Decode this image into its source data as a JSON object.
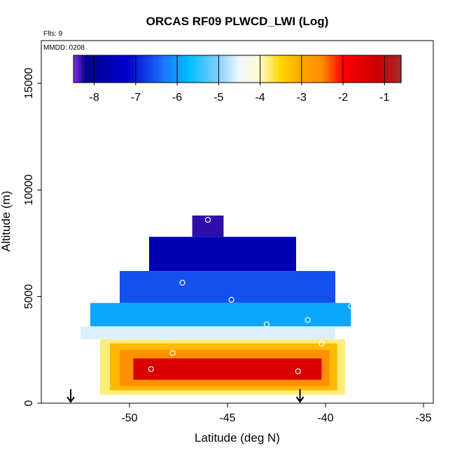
{
  "chart_data": {
    "type": "heatmap",
    "title": "ORCAS RF09 PLWCD_LWI (Log)",
    "xlabel": "Latitude (deg N)",
    "ylabel": "Altitude (m)",
    "xlim": [
      -54.5,
      -34.5
    ],
    "ylim": [
      0,
      17000
    ],
    "x_ticks": [
      -50,
      -45,
      -40,
      -35
    ],
    "y_ticks": [
      0,
      5000,
      10000,
      15000
    ],
    "annotations": {
      "flights": "Flts: 9",
      "date": "MMDD: 0208"
    },
    "colorbar": {
      "min": -8.5,
      "max": -0.6,
      "ticks": [
        -8,
        -7,
        -6,
        -5,
        -4,
        -3,
        -2,
        -1
      ],
      "stops": [
        {
          "v": -8.5,
          "c": "#8a2be2"
        },
        {
          "v": -8.2,
          "c": "#00008b"
        },
        {
          "v": -7.2,
          "c": "#0000cd"
        },
        {
          "v": -6.3,
          "c": "#1e78ff"
        },
        {
          "v": -5.7,
          "c": "#00bfff"
        },
        {
          "v": -5.0,
          "c": "#87cefa"
        },
        {
          "v": -4.5,
          "c": "#f0f8ff"
        },
        {
          "v": -4.0,
          "c": "#fffacd"
        },
        {
          "v": -3.5,
          "c": "#ffd700"
        },
        {
          "v": -3.0,
          "c": "#ffa500"
        },
        {
          "v": -2.5,
          "c": "#ff8c00"
        },
        {
          "v": -2.0,
          "c": "#ff0000"
        },
        {
          "v": -1.2,
          "c": "#cc0000"
        },
        {
          "v": -0.6,
          "c": "#a52a2a"
        }
      ]
    },
    "field_regions": [
      {
        "name": "upper-apex",
        "lat": [
          -46.8,
          -45.2
        ],
        "alt": [
          7800,
          8800
        ],
        "value": -8.3
      },
      {
        "name": "upper-dark",
        "lat": [
          -49.0,
          -41.5
        ],
        "alt": [
          6200,
          7800
        ],
        "value": -7.6
      },
      {
        "name": "mid-blue",
        "lat": [
          -50.5,
          -39.5
        ],
        "alt": [
          4700,
          6200
        ],
        "value": -6.6
      },
      {
        "name": "lower-blue",
        "lat": [
          -52.0,
          -38.7
        ],
        "alt": [
          3600,
          4700
        ],
        "value": -5.9
      },
      {
        "name": "pale-transition",
        "lat": [
          -52.5,
          -39.5
        ],
        "alt": [
          3000,
          3600
        ],
        "value": -4.6
      },
      {
        "name": "cloud-edge",
        "lat": [
          -51.5,
          -39.0
        ],
        "alt": [
          400,
          3000
        ],
        "value": -3.8
      },
      {
        "name": "cloud-yellow",
        "lat": [
          -51.0,
          -39.4
        ],
        "alt": [
          600,
          2800
        ],
        "value": -3.2
      },
      {
        "name": "cloud-orange",
        "lat": [
          -50.5,
          -39.8
        ],
        "alt": [
          800,
          2500
        ],
        "value": -2.6
      },
      {
        "name": "cloud-core",
        "lat": [
          -49.8,
          -40.2
        ],
        "alt": [
          1100,
          2100
        ],
        "value": -1.4
      }
    ],
    "sample_points": [
      {
        "lat": -46.0,
        "alt": 8600
      },
      {
        "lat": -47.3,
        "alt": 5650
      },
      {
        "lat": -44.8,
        "alt": 4850
      },
      {
        "lat": -43.0,
        "alt": 3700
      },
      {
        "lat": -40.9,
        "alt": 3900
      },
      {
        "lat": -38.7,
        "alt": 4550
      },
      {
        "lat": -47.8,
        "alt": 2350
      },
      {
        "lat": -48.9,
        "alt": 1600
      },
      {
        "lat": -41.4,
        "alt": 1500
      },
      {
        "lat": -40.2,
        "alt": 2800
      }
    ],
    "arrows": [
      {
        "lat": -53.0
      },
      {
        "lat": -41.3
      }
    ]
  }
}
